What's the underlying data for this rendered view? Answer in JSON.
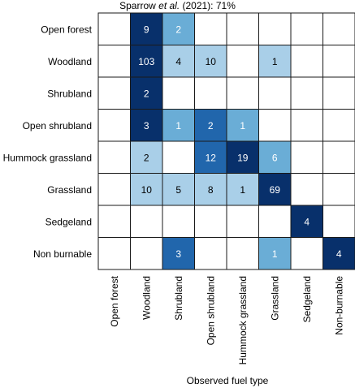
{
  "chart_data": {
    "type": "heatmap",
    "title": {
      "prefix": "Sparrow ",
      "italic": "et al.",
      "suffix": " (2021): 71%"
    },
    "xlabel": "Observed fuel type",
    "ylabel": "",
    "rows": [
      "Open forest",
      "Woodland",
      "Shrubland",
      "Open shrubland",
      "Hummock grassland",
      "Grassland",
      "Sedgeland",
      "Non burnable"
    ],
    "columns": [
      "Open forest",
      "Woodland",
      "Shrubland",
      "Open shrubland",
      "Hummock grassland",
      "Grassland",
      "Sedgeland",
      "Non-burnable"
    ],
    "values": [
      [
        null,
        9,
        2,
        null,
        null,
        null,
        null,
        null
      ],
      [
        null,
        103,
        4,
        10,
        null,
        1,
        null,
        null
      ],
      [
        null,
        2,
        null,
        null,
        null,
        null,
        null,
        null
      ],
      [
        null,
        3,
        1,
        2,
        1,
        null,
        null,
        null
      ],
      [
        null,
        2,
        null,
        12,
        19,
        6,
        null,
        null
      ],
      [
        null,
        10,
        5,
        8,
        1,
        69,
        null,
        null
      ],
      [
        null,
        null,
        null,
        null,
        null,
        null,
        4,
        null
      ],
      [
        null,
        null,
        3,
        null,
        null,
        1,
        null,
        4
      ]
    ],
    "colors": {
      "light": "#a9cfe8",
      "mid": "#6aadd6",
      "strong": "#3b86c2",
      "deep": "#2166ac",
      "darkest": "#08306b",
      "empty": "#ffffff",
      "grid": "#1a1a1a"
    },
    "color_scale": "Blues (row-normalised)"
  }
}
